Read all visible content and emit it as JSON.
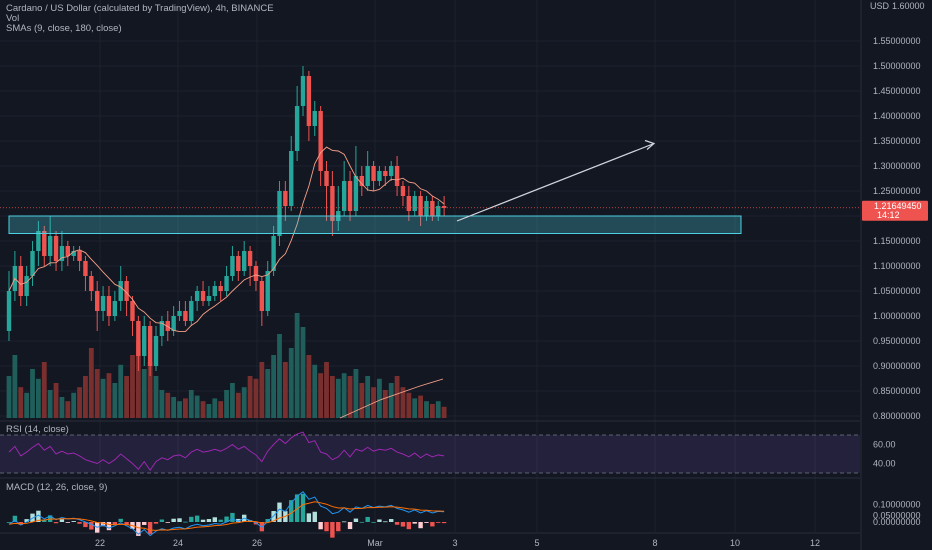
{
  "header": {
    "title": "Cardano / US Dollar (calculated by TradingView), 4h, BINANCE",
    "vol_label": "Vol",
    "sma_label": "SMAs (9, close, 180, close)",
    "currency": "USD"
  },
  "rsi": {
    "label": "RSI (14, close)",
    "ticks": [
      "60.00",
      "40.00"
    ]
  },
  "macd": {
    "label": "MACD (12, 26, close, 9)",
    "ticks": [
      "0.10000000",
      "0.05000000",
      "0.00000000"
    ]
  },
  "price_axis": {
    "ticks": [
      "1.60000",
      "1.55000000",
      "1.50000000",
      "1.45000000",
      "1.40000000",
      "1.35000000",
      "1.30000000",
      "1.25000000",
      "1.15000000",
      "1.10000000",
      "1.05000000",
      "1.00000000",
      "0.95000000",
      "0.90000000",
      "0.85000000",
      "0.80000000"
    ],
    "current_price": "1.21649450",
    "countdown": "14:12"
  },
  "time_axis": {
    "ticks": [
      "22",
      "24",
      "26",
      "Mar",
      "3",
      "5",
      "8",
      "10",
      "12"
    ]
  },
  "colors": {
    "bull": "#26a69a",
    "bear": "#ef5350",
    "zone": "#4dd0e1",
    "rsi_line": "#9c27b0",
    "macd_line": "#2196f3",
    "signal_line": "#ff6d00"
  },
  "chart_data": {
    "type": "candlestick",
    "title": "Cardano / US Dollar (calculated by TradingView), 4h, BINANCE",
    "x_ticks": [
      "22",
      "24",
      "26",
      "Mar",
      "3",
      "5",
      "8",
      "10",
      "12"
    ],
    "ylim": [
      0.78,
      1.62
    ],
    "support_zone": [
      1.165,
      1.2
    ],
    "projection_arrow": {
      "from": 1.19,
      "to": 1.345
    },
    "candles": [
      [
        0.97,
        1.05,
        0.95,
        1.09
      ],
      [
        1.05,
        1.1,
        1.03,
        1.13
      ],
      [
        1.1,
        1.04,
        1.02,
        1.12
      ],
      [
        1.04,
        1.08,
        1.02,
        1.1
      ],
      [
        1.08,
        1.13,
        1.06,
        1.15
      ],
      [
        1.13,
        1.17,
        1.1,
        1.19
      ],
      [
        1.17,
        1.12,
        1.1,
        1.18
      ],
      [
        1.12,
        1.16,
        1.1,
        1.2
      ],
      [
        1.16,
        1.11,
        1.09,
        1.17
      ],
      [
        1.11,
        1.14,
        1.09,
        1.17
      ],
      [
        1.14,
        1.12,
        1.1,
        1.15
      ],
      [
        1.12,
        1.13,
        1.11,
        1.14
      ],
      [
        1.13,
        1.11,
        1.09,
        1.14
      ],
      [
        1.11,
        1.08,
        1.05,
        1.12
      ],
      [
        1.08,
        1.05,
        1.03,
        1.09
      ],
      [
        1.05,
        1.01,
        0.97,
        1.07
      ],
      [
        1.01,
        1.04,
        0.99,
        1.06
      ],
      [
        1.04,
        1.0,
        0.98,
        1.06
      ],
      [
        1.0,
        1.03,
        0.99,
        1.05
      ],
      [
        1.03,
        1.07,
        1.01,
        1.1
      ],
      [
        1.07,
        1.03,
        1.0,
        1.08
      ],
      [
        1.03,
        0.99,
        0.96,
        1.04
      ],
      [
        0.99,
        0.92,
        0.89,
        1.0
      ],
      [
        0.92,
        0.98,
        0.9,
        1.0
      ],
      [
        0.98,
        0.9,
        0.88,
        0.99
      ],
      [
        0.9,
        0.96,
        0.89,
        0.98
      ],
      [
        0.96,
        0.99,
        0.94,
        1.0
      ],
      [
        0.99,
        0.97,
        0.95,
        1.01
      ],
      [
        0.97,
        1.0,
        0.96,
        1.02
      ],
      [
        1.0,
        1.01,
        0.99,
        1.03
      ],
      [
        1.01,
        0.99,
        0.98,
        1.03
      ],
      [
        0.99,
        1.03,
        0.98,
        1.04
      ],
      [
        1.03,
        1.05,
        1.01,
        1.06
      ],
      [
        1.05,
        1.03,
        1.02,
        1.07
      ],
      [
        1.03,
        1.04,
        1.02,
        1.06
      ],
      [
        1.04,
        1.06,
        1.03,
        1.07
      ],
      [
        1.06,
        1.05,
        1.03,
        1.07
      ],
      [
        1.05,
        1.08,
        1.04,
        1.1
      ],
      [
        1.08,
        1.12,
        1.07,
        1.14
      ],
      [
        1.12,
        1.09,
        1.07,
        1.13
      ],
      [
        1.09,
        1.13,
        1.08,
        1.15
      ],
      [
        1.13,
        1.1,
        1.06,
        1.14
      ],
      [
        1.1,
        1.07,
        1.05,
        1.11
      ],
      [
        1.07,
        1.01,
        0.98,
        1.08
      ],
      [
        1.01,
        1.09,
        1.0,
        1.11
      ],
      [
        1.09,
        1.16,
        1.08,
        1.18
      ],
      [
        1.16,
        1.25,
        1.14,
        1.27
      ],
      [
        1.25,
        1.22,
        1.19,
        1.27
      ],
      [
        1.22,
        1.33,
        1.21,
        1.36
      ],
      [
        1.33,
        1.42,
        1.31,
        1.46
      ],
      [
        1.42,
        1.48,
        1.4,
        1.5
      ],
      [
        1.48,
        1.38,
        1.35,
        1.49
      ],
      [
        1.38,
        1.41,
        1.36,
        1.43
      ],
      [
        1.41,
        1.29,
        1.26,
        1.42
      ],
      [
        1.29,
        1.26,
        1.19,
        1.31
      ],
      [
        1.26,
        1.19,
        1.16,
        1.29
      ],
      [
        1.19,
        1.21,
        1.17,
        1.26
      ],
      [
        1.21,
        1.27,
        1.2,
        1.31
      ],
      [
        1.27,
        1.21,
        1.19,
        1.29
      ],
      [
        1.21,
        1.28,
        1.2,
        1.34
      ],
      [
        1.28,
        1.26,
        1.24,
        1.3
      ],
      [
        1.26,
        1.3,
        1.25,
        1.33
      ],
      [
        1.3,
        1.27,
        1.25,
        1.31
      ],
      [
        1.27,
        1.29,
        1.26,
        1.3
      ],
      [
        1.29,
        1.28,
        1.26,
        1.3
      ],
      [
        1.28,
        1.3,
        1.27,
        1.31
      ],
      [
        1.3,
        1.26,
        1.24,
        1.32
      ],
      [
        1.26,
        1.24,
        1.22,
        1.27
      ],
      [
        1.24,
        1.21,
        1.19,
        1.26
      ],
      [
        1.21,
        1.24,
        1.2,
        1.25
      ],
      [
        1.24,
        1.2,
        1.18,
        1.25
      ],
      [
        1.2,
        1.23,
        1.19,
        1.24
      ],
      [
        1.23,
        1.2,
        1.19,
        1.24
      ],
      [
        1.2,
        1.22,
        1.19,
        1.23
      ],
      [
        1.22,
        1.216,
        1.2,
        1.24
      ]
    ],
    "volume": [
      0.3,
      0.45,
      0.22,
      0.18,
      0.35,
      0.28,
      0.4,
      0.2,
      0.25,
      0.15,
      0.12,
      0.18,
      0.22,
      0.3,
      0.5,
      0.35,
      0.28,
      0.32,
      0.25,
      0.38,
      0.3,
      0.45,
      0.55,
      0.35,
      0.4,
      0.3,
      0.2,
      0.18,
      0.15,
      0.12,
      0.14,
      0.2,
      0.16,
      0.12,
      0.1,
      0.14,
      0.12,
      0.2,
      0.25,
      0.18,
      0.22,
      0.3,
      0.28,
      0.4,
      0.35,
      0.45,
      0.6,
      0.4,
      0.5,
      0.75,
      0.65,
      0.45,
      0.38,
      0.32,
      0.4,
      0.3,
      0.28,
      0.32,
      0.3,
      0.35,
      0.25,
      0.3,
      0.22,
      0.28,
      0.2,
      0.25,
      0.3,
      0.22,
      0.18,
      0.14,
      0.16,
      0.12,
      0.1,
      0.12,
      0.08
    ],
    "rsi": [
      52,
      58,
      48,
      52,
      57,
      61,
      54,
      58,
      50,
      53,
      50,
      51,
      48,
      44,
      42,
      40,
      44,
      40,
      44,
      50,
      45,
      40,
      34,
      42,
      33,
      42,
      46,
      44,
      48,
      49,
      46,
      52,
      55,
      52,
      53,
      55,
      53,
      56,
      60,
      55,
      58,
      53,
      49,
      42,
      53,
      60,
      66,
      61,
      67,
      71,
      73,
      62,
      64,
      52,
      50,
      44,
      47,
      54,
      47,
      55,
      53,
      57,
      53,
      55,
      54,
      56,
      52,
      50,
      47,
      51,
      46,
      50,
      47,
      49,
      48
    ]
  }
}
